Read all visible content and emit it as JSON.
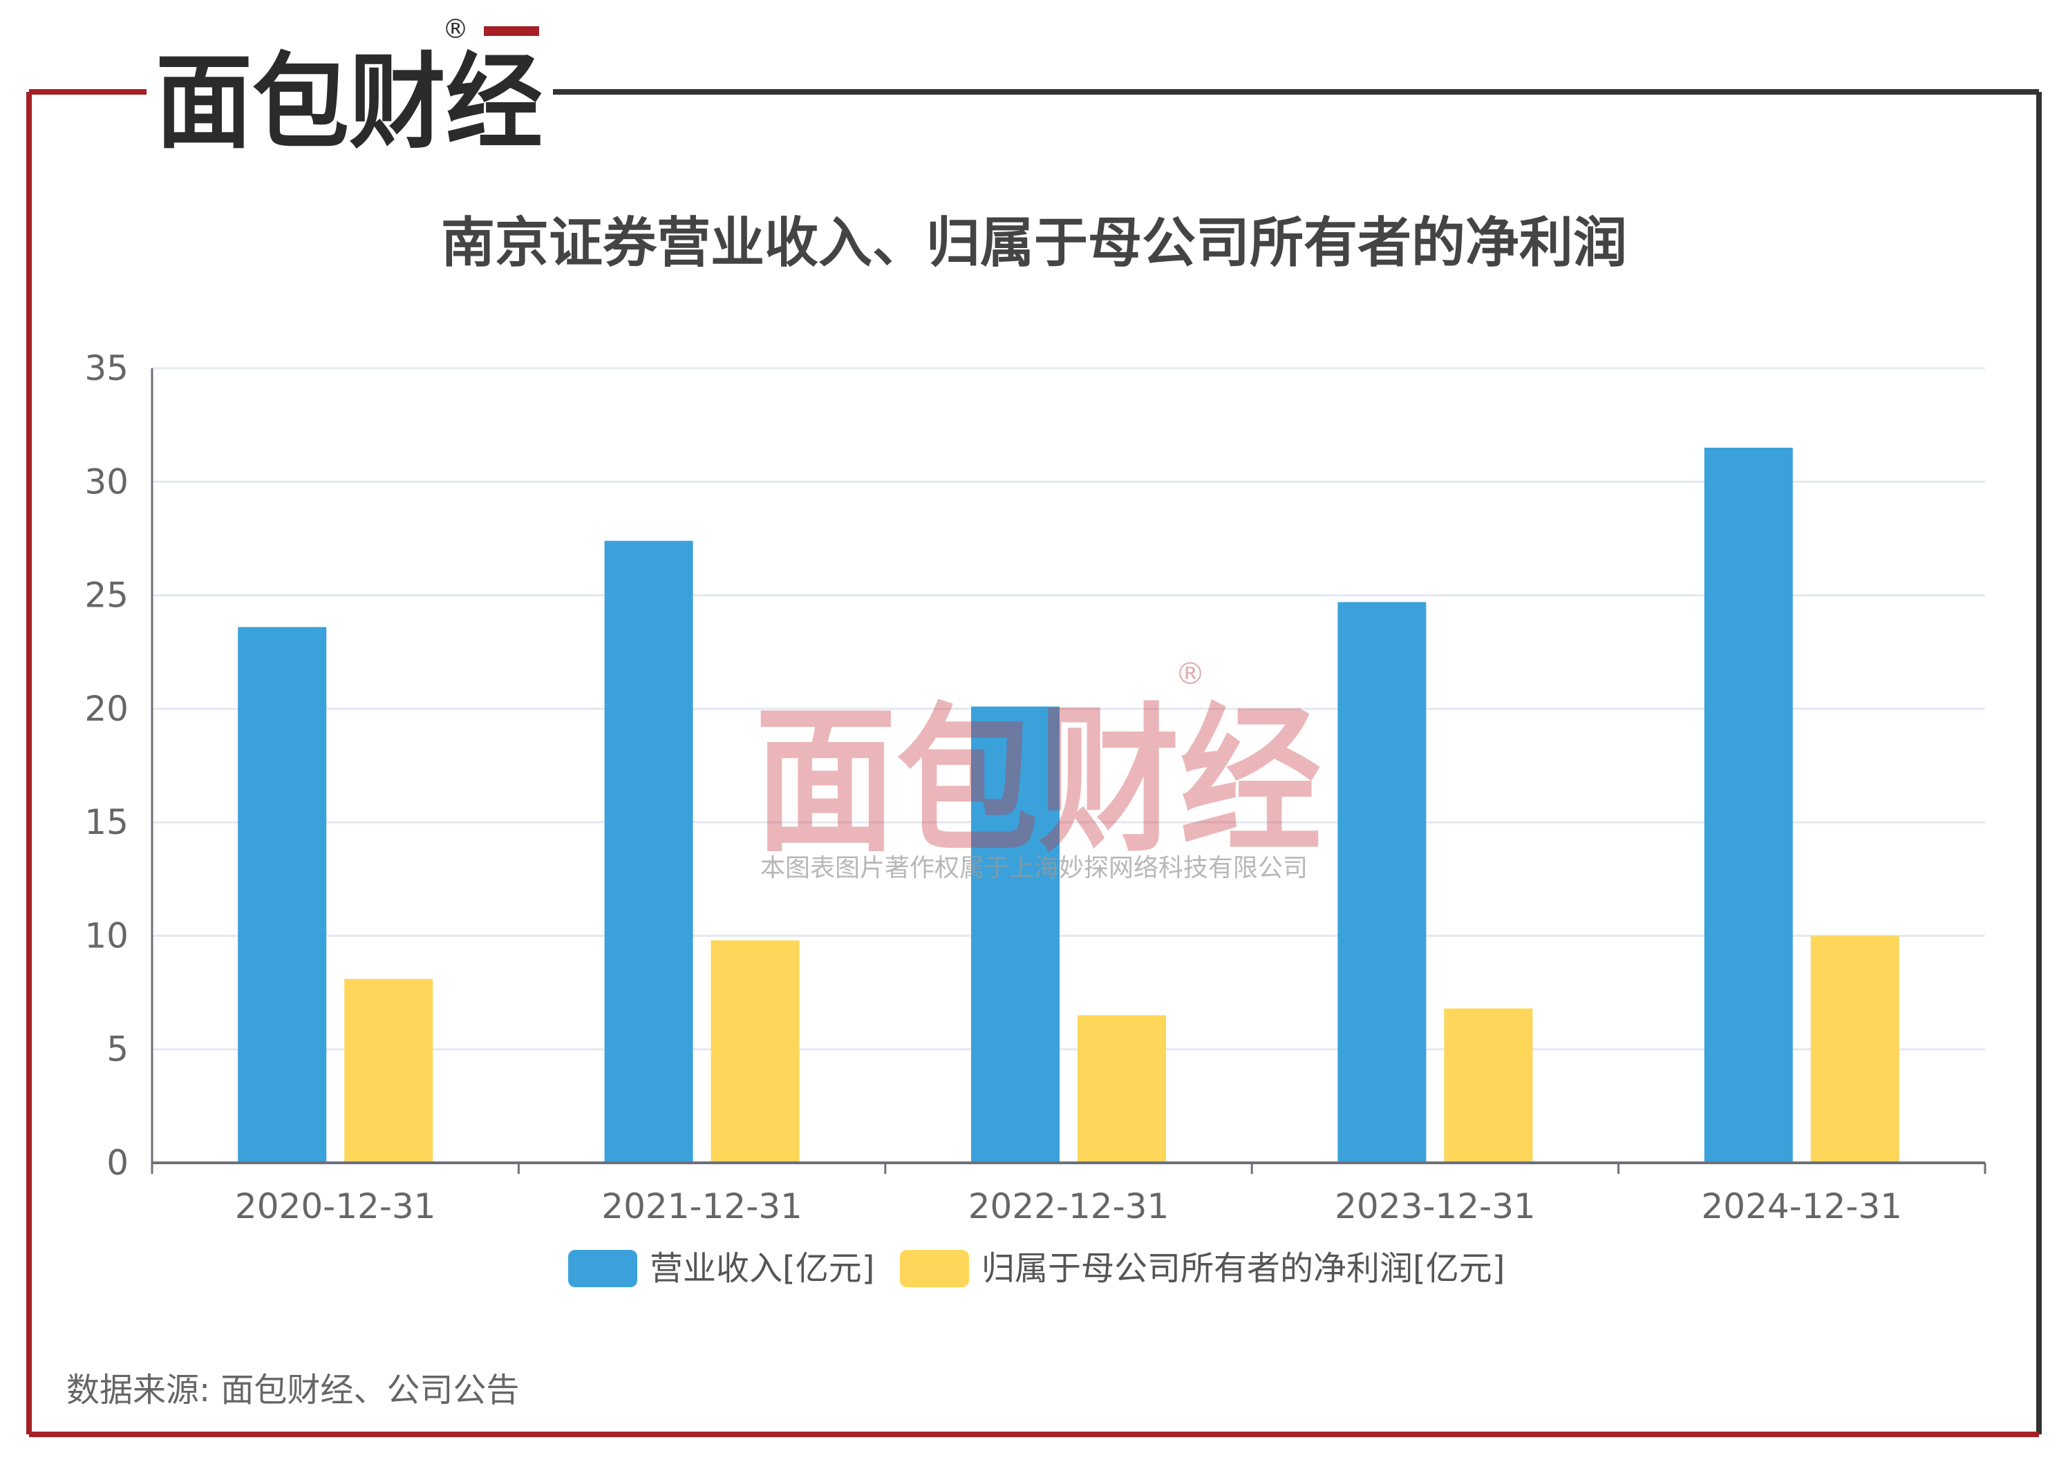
{
  "brand": {
    "logo_text": "面包财经",
    "registered_mark": "®",
    "frame_color": "#a51f24",
    "logo_color_red": "#a51f24",
    "logo_color_dark": "#2b2b2b"
  },
  "watermark": {
    "logo_text": "面包财经",
    "registered_mark": "®",
    "copyright_text": "本图表图片著作权属于上海妙探网络科技有限公司"
  },
  "chart_data": {
    "type": "bar",
    "title": "南京证券营业收入、归属于母公司所有者的净利润",
    "categories": [
      "2020-12-31",
      "2021-12-31",
      "2022-12-31",
      "2023-12-31",
      "2024-12-31"
    ],
    "series": [
      {
        "name": "营业收入[亿元]",
        "color": "#3ba1da",
        "values": [
          23.6,
          27.4,
          20.1,
          24.7,
          31.5
        ]
      },
      {
        "name": "归属于母公司所有者的净利润[亿元]",
        "color": "#fed65a",
        "values": [
          8.1,
          9.8,
          6.5,
          6.8,
          10.0
        ]
      }
    ],
    "ylim": [
      0,
      35
    ],
    "yticks": [
      "0",
      "5",
      "10",
      "15",
      "20",
      "25",
      "30",
      "35"
    ],
    "grid": true,
    "legend_position": "bottom-center"
  },
  "source_note": "数据来源: 面包财经、公司公告"
}
